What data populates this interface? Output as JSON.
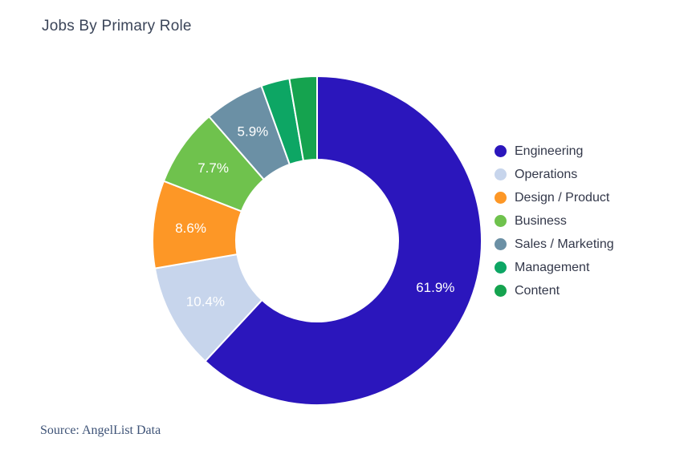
{
  "page": {
    "title": "Jobs By Primary Role",
    "source": "Source: AngelList Data"
  },
  "chart_data": {
    "type": "pie",
    "style": "donut",
    "title": "Jobs By Primary Role",
    "categories": [
      "Engineering",
      "Operations",
      "Design / Product",
      "Business",
      "Sales / Marketing",
      "Management",
      "Content"
    ],
    "values": [
      61.9,
      10.4,
      8.6,
      7.7,
      5.9,
      2.8,
      2.7
    ],
    "slice_labels": [
      "61.9%",
      "10.4%",
      "8.6%",
      "7.7%",
      "5.9%",
      "",
      ""
    ],
    "colors": [
      "#2b16bc",
      "#c7d5ec",
      "#fd9726",
      "#6fc24d",
      "#6b90a5",
      "#0da664",
      "#15a34f"
    ],
    "legend_position": "right",
    "start_angle_deg": 0,
    "direction": "clockwise",
    "inner_radius_ratio": 0.49,
    "annotation": "Source: AngelList Data"
  }
}
